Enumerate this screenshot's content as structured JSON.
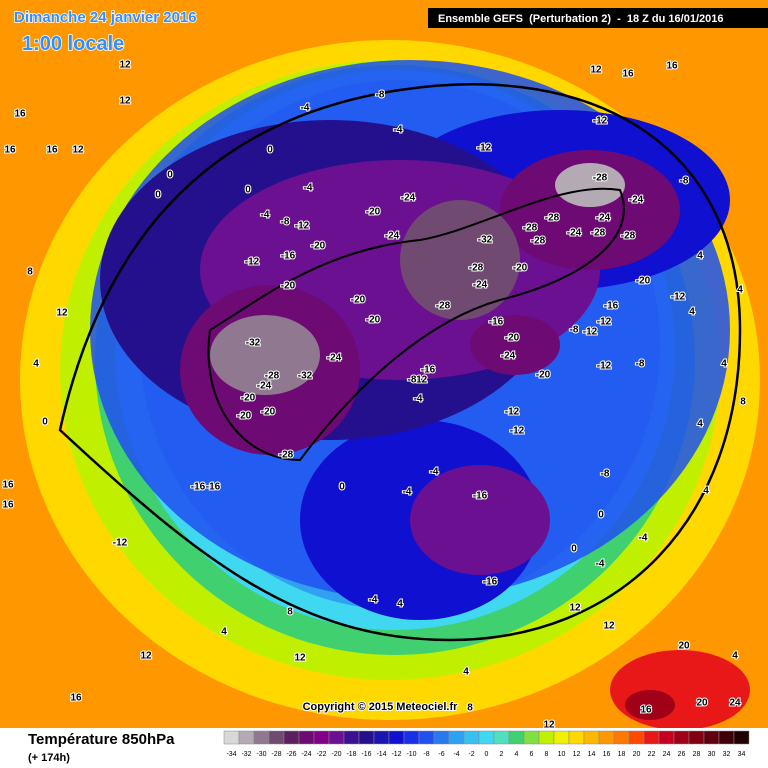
{
  "header": {
    "date": "Dimanche 24 janvier 2016",
    "time": "1:00 locale",
    "run": "Ensemble GEFS  (Perturbation 2)  -  18 Z du 16/01/2016"
  },
  "map": {
    "copyright": "Copyright © 2015 Meteociel.fr",
    "labels": [
      12,
      12,
      16,
      16,
      16,
      12,
      0,
      0,
      0,
      0,
      -4,
      -8,
      -4,
      -12,
      -12,
      -4,
      -4,
      -8,
      -12,
      -20,
      -16,
      -12,
      -20,
      -24,
      -24,
      -32,
      -28,
      -24,
      -28,
      -20,
      -20,
      -20,
      -32,
      -32,
      -24,
      -28,
      -24,
      -20,
      -20,
      -20,
      -28,
      -16,
      -16,
      -16,
      -12,
      -8,
      -4,
      -16,
      -20,
      -24,
      -20,
      -20,
      -28,
      -28,
      -28,
      -28,
      -24,
      -24,
      -28,
      -28,
      -24,
      -20,
      -16,
      -12,
      -12,
      -8,
      -12,
      -8,
      -12,
      -12,
      -12,
      -16,
      -16,
      -4,
      -4,
      0,
      -4,
      4,
      4,
      12,
      8,
      -12,
      8,
      4,
      12,
      16,
      12,
      4,
      0,
      12,
      16,
      16,
      8,
      12,
      16,
      16,
      -8,
      4,
      4,
      4,
      8,
      4,
      -4,
      0,
      12,
      12,
      20,
      20,
      24,
      16,
      4,
      -4,
      -8,
      0,
      4,
      4
    ]
  },
  "footer": {
    "title": "Température 850hPa",
    "lead": "(+ 174h)"
  },
  "legend": {
    "ticks": [
      -34,
      -32,
      -30,
      -28,
      -26,
      -24,
      -22,
      -20,
      -18,
      -16,
      -14,
      -12,
      -10,
      -8,
      -6,
      -4,
      -2,
      0,
      2,
      4,
      6,
      8,
      10,
      12,
      14,
      16,
      18,
      20,
      22,
      24,
      26,
      28,
      30,
      32,
      34
    ],
    "colors": [
      "#d8d8d8",
      "#b4aab4",
      "#907890",
      "#704a70",
      "#5c2060",
      "#6e0a74",
      "#820088",
      "#6a1090",
      "#3c1090",
      "#24108c",
      "#1a14b0",
      "#1010d0",
      "#1830e8",
      "#2050f0",
      "#2878f0",
      "#30a0f0",
      "#38c0f0",
      "#40d8f0",
      "#50e0c0",
      "#40d070",
      "#80e040",
      "#c0f000",
      "#f0f000",
      "#ffd800",
      "#ffb800",
      "#ff9800",
      "#ff7800",
      "#ff4800",
      "#e81818",
      "#c80020",
      "#a00018",
      "#800010",
      "#600010",
      "#400008",
      "#200000"
    ]
  }
}
